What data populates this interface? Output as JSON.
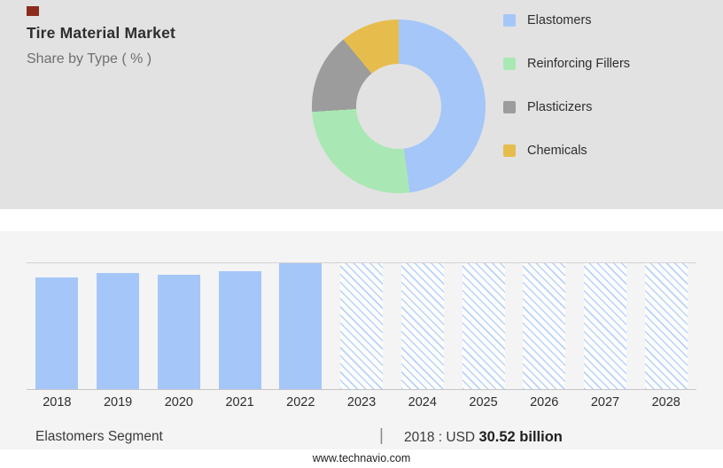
{
  "header": {
    "title": "Tire Material Market",
    "subtitle": "Share by Type ( % )"
  },
  "chart_data": [
    {
      "type": "pie",
      "title": "Tire Material Market — Share by Type ( % )",
      "style": "donut",
      "labels": [
        "Elastomers",
        "Reinforcing Fillers",
        "Plasticizers",
        "Chemicals"
      ],
      "values": [
        48,
        26,
        15,
        11
      ],
      "colors": [
        "#A5C6F9",
        "#A9E8B4",
        "#9C9C9C",
        "#E6BD4D"
      ],
      "legend_position": "right",
      "note": "values estimated from arc angles, percent of total"
    },
    {
      "type": "bar",
      "title": "Elastomers Segment",
      "categories": [
        "2018",
        "2019",
        "2020",
        "2021",
        "2022",
        "2023",
        "2024",
        "2025",
        "2026",
        "2027",
        "2028"
      ],
      "values": [
        89,
        92,
        91,
        94,
        100,
        100,
        100,
        100,
        100,
        100,
        100
      ],
      "unit": "relative bar height %, no y-axis shown",
      "bar_color": "#A5C6F9",
      "forecast_start_index": 5,
      "forecast_style": "diagonal-hatch",
      "annotation": "2018 : USD 30.52 billion",
      "grid": "top and baseline only",
      "legend_position": "none"
    }
  ],
  "caption": {
    "segment": "Elastomers Segment",
    "separator": "|",
    "value_prefix": "2018 : USD ",
    "value_bold": "30.52 billion"
  },
  "footer": {
    "website": "www.technavio.com"
  },
  "colors": {
    "top_panel_bg": "#E2E2E2",
    "lower_panel_bg": "#F4F4F4",
    "accent_blue": "#A5C6F9",
    "logo_red": "#8B2B1E"
  }
}
